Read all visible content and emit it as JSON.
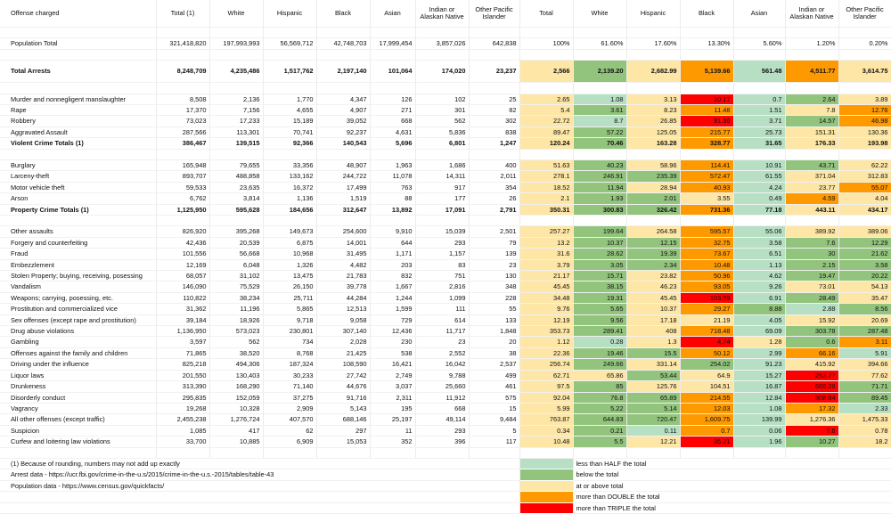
{
  "headers": [
    "Offense charged",
    "Total (1)",
    "White",
    "Hispanic",
    "Black",
    "Asian",
    "Indian or Alaskan Native",
    "Other Pacific Islander",
    "Total",
    "White",
    "Hispanic",
    "Black",
    "Asian",
    "Indian or Alaskan Native",
    "Other Pacific Islander"
  ],
  "population": {
    "label": "Population Total",
    "counts": [
      "321,418,820",
      "197,993,993",
      "56,569,712",
      "42,748,703",
      "17,999,454",
      "3,857,026",
      "642,838"
    ],
    "pct": [
      "100%",
      "61.60%",
      "17.60%",
      "13.30%",
      "5.60%",
      "1.20%",
      "0.20%"
    ]
  },
  "total_arrests": {
    "label": "Total Arrests",
    "counts": [
      "8,248,709",
      "4,235,486",
      "1,517,762",
      "2,197,140",
      "101,064",
      "174,020",
      "23,237"
    ],
    "rates": [
      "2,566",
      "2,139.20",
      "2,682.99",
      "5,139.66",
      "561.48",
      "4,511.77",
      "3,614.75"
    ],
    "colors": [
      "",
      "v",
      "y",
      "o",
      "g",
      "o",
      "y"
    ]
  },
  "groups": [
    {
      "rows": [
        {
          "label": "Murder and nonnegligent manslaughter",
          "counts": [
            "8,508",
            "2,136",
            "1,770",
            "4,347",
            "126",
            "102",
            "25"
          ],
          "rates": [
            "2.65",
            "1.08",
            "3.13",
            "10.17",
            "0.7",
            "2.64",
            "3.89"
          ],
          "colors": [
            "y",
            "g",
            "y",
            "r",
            "g",
            "v",
            "y"
          ]
        },
        {
          "label": "Rape",
          "counts": [
            "17,370",
            "7,156",
            "4,655",
            "4,907",
            "271",
            "301",
            "82"
          ],
          "rates": [
            "5.4",
            "3.61",
            "8.23",
            "11.48",
            "1.51",
            "7.8",
            "12.76"
          ],
          "colors": [
            "y",
            "v",
            "y",
            "o",
            "g",
            "y",
            "o"
          ]
        },
        {
          "label": "Robbery",
          "counts": [
            "73,023",
            "17,233",
            "15,189",
            "39,052",
            "668",
            "562",
            "302"
          ],
          "rates": [
            "22.72",
            "8.7",
            "26.85",
            "91.36",
            "3.71",
            "14.57",
            "46.98"
          ],
          "colors": [
            "y",
            "g",
            "y",
            "r",
            "g",
            "v",
            "o"
          ]
        },
        {
          "label": "Aggravated Assault",
          "counts": [
            "287,566",
            "113,301",
            "70,741",
            "92,237",
            "4,631",
            "5,836",
            "838"
          ],
          "rates": [
            "89.47",
            "57.22",
            "125.05",
            "215.77",
            "25.73",
            "151.31",
            "130.36"
          ],
          "colors": [
            "y",
            "v",
            "y",
            "o",
            "g",
            "y",
            "y"
          ]
        },
        {
          "label": "Violent Crime Totals (1)",
          "bold": true,
          "counts": [
            "386,467",
            "139,515",
            "92,366",
            "140,543",
            "5,696",
            "6,801",
            "1,247"
          ],
          "rates": [
            "120.24",
            "70.46",
            "163.28",
            "328.77",
            "31.65",
            "176.33",
            "193.98"
          ],
          "colors": [
            "y",
            "v",
            "y",
            "o",
            "g",
            "y",
            "y"
          ]
        }
      ]
    },
    {
      "rows": [
        {
          "label": "Burglary",
          "counts": [
            "165,948",
            "79,655",
            "33,356",
            "48,907",
            "1,963",
            "1,686",
            "400"
          ],
          "rates": [
            "51.63",
            "40.23",
            "58.96",
            "114.41",
            "10.91",
            "43.71",
            "62.22"
          ],
          "colors": [
            "y",
            "v",
            "y",
            "o",
            "g",
            "v",
            "y"
          ]
        },
        {
          "label": "Larceny-theft",
          "counts": [
            "893,707",
            "488,858",
            "133,162",
            "244,722",
            "11,078",
            "14,311",
            "2,011"
          ],
          "rates": [
            "278.1",
            "246.91",
            "235.39",
            "572.47",
            "61.55",
            "371.04",
            "312.83"
          ],
          "colors": [
            "y",
            "v",
            "v",
            "o",
            "g",
            "y",
            "y"
          ]
        },
        {
          "label": "Motor vehicle theft",
          "counts": [
            "59,533",
            "23,635",
            "16,372",
            "17,499",
            "763",
            "917",
            "354"
          ],
          "rates": [
            "18.52",
            "11.94",
            "28.94",
            "40.93",
            "4.24",
            "23.77",
            "55.07"
          ],
          "colors": [
            "y",
            "v",
            "y",
            "o",
            "g",
            "y",
            "o"
          ]
        },
        {
          "label": "Arson",
          "counts": [
            "6,762",
            "3,814",
            "1,136",
            "1,519",
            "88",
            "177",
            "26"
          ],
          "rates": [
            "2.1",
            "1.93",
            "2.01",
            "3.55",
            "0.49",
            "4.59",
            "4.04"
          ],
          "colors": [
            "y",
            "v",
            "v",
            "y",
            "g",
            "o",
            "y"
          ]
        },
        {
          "label": "Property Crime Totals (1)",
          "bold": true,
          "counts": [
            "1,125,950",
            "595,628",
            "184,656",
            "312,647",
            "13,892",
            "17,091",
            "2,791"
          ],
          "rates": [
            "350.31",
            "300.83",
            "326.42",
            "731.36",
            "77.18",
            "443.11",
            "434.17"
          ],
          "colors": [
            "y",
            "v",
            "v",
            "o",
            "g",
            "y",
            "y"
          ]
        }
      ]
    },
    {
      "rows": [
        {
          "label": "Other assaults",
          "counts": [
            "826,920",
            "395,268",
            "149,673",
            "254,600",
            "9,910",
            "15,039",
            "2,501"
          ],
          "rates": [
            "257.27",
            "199.64",
            "264.58",
            "595.57",
            "55.06",
            "389.92",
            "389.06"
          ],
          "colors": [
            "y",
            "v",
            "y",
            "o",
            "g",
            "y",
            "y"
          ]
        },
        {
          "label": "Forgery and counterfeiting",
          "counts": [
            "42,436",
            "20,539",
            "6,875",
            "14,001",
            "644",
            "293",
            "79"
          ],
          "rates": [
            "13.2",
            "10.37",
            "12.15",
            "32.75",
            "3.58",
            "7.6",
            "12.29"
          ],
          "colors": [
            "y",
            "v",
            "v",
            "o",
            "g",
            "v",
            "v"
          ]
        },
        {
          "label": "Fraud",
          "counts": [
            "101,556",
            "56,668",
            "10,968",
            "31,495",
            "1,171",
            "1,157",
            "139"
          ],
          "rates": [
            "31.6",
            "28.62",
            "19.39",
            "73.67",
            "6.51",
            "30",
            "21.62"
          ],
          "colors": [
            "y",
            "v",
            "v",
            "o",
            "g",
            "v",
            "v"
          ]
        },
        {
          "label": "Embezzlement",
          "counts": [
            "12,169",
            "6,048",
            "1,326",
            "4,482",
            "203",
            "83",
            "23"
          ],
          "rates": [
            "3.79",
            "3.05",
            "2.34",
            "10.48",
            "1.13",
            "2.15",
            "3.58"
          ],
          "colors": [
            "y",
            "v",
            "v",
            "o",
            "g",
            "v",
            "v"
          ]
        },
        {
          "label": "Stolen Property; buying, receiving, posessing",
          "counts": [
            "68,057",
            "31,102",
            "13,475",
            "21,783",
            "832",
            "751",
            "130"
          ],
          "rates": [
            "21.17",
            "15.71",
            "23.82",
            "50.96",
            "4.62",
            "19.47",
            "20.22"
          ],
          "colors": [
            "y",
            "v",
            "y",
            "o",
            "g",
            "v",
            "v"
          ]
        },
        {
          "label": "Vandalism",
          "counts": [
            "146,090",
            "75,529",
            "26,150",
            "39,778",
            "1,667",
            "2,816",
            "348"
          ],
          "rates": [
            "45.45",
            "38.15",
            "46.23",
            "93.05",
            "9.26",
            "73.01",
            "54.13"
          ],
          "colors": [
            "y",
            "v",
            "y",
            "o",
            "g",
            "y",
            "y"
          ]
        },
        {
          "label": "Weapons; carrying, posessing, etc.",
          "counts": [
            "110,822",
            "38,234",
            "25,711",
            "44,284",
            "1,244",
            "1,099",
            "228"
          ],
          "rates": [
            "34.48",
            "19.31",
            "45.45",
            "103.59",
            "6.91",
            "28.49",
            "35.47"
          ],
          "colors": [
            "y",
            "v",
            "y",
            "r",
            "g",
            "v",
            "y"
          ]
        },
        {
          "label": "Prostitution and commercialized vice",
          "counts": [
            "31,362",
            "11,196",
            "5,865",
            "12,513",
            "1,599",
            "111",
            "55"
          ],
          "rates": [
            "9.76",
            "5.65",
            "10.37",
            "29.27",
            "8.88",
            "2.88",
            "8.56"
          ],
          "colors": [
            "y",
            "v",
            "y",
            "o",
            "v",
            "g",
            "v"
          ]
        },
        {
          "label": "Sex offenses (except rape and prostitution)",
          "counts": [
            "39,184",
            "18,926",
            "9,718",
            "9,058",
            "729",
            "614",
            "133"
          ],
          "rates": [
            "12.19",
            "9.56",
            "17.18",
            "21.19",
            "4.05",
            "15.92",
            "20.69"
          ],
          "colors": [
            "y",
            "v",
            "y",
            "y",
            "g",
            "y",
            "y"
          ]
        },
        {
          "label": "Drug abuse violations",
          "counts": [
            "1,136,950",
            "573,023",
            "230,801",
            "307,140",
            "12,436",
            "11,717",
            "1,848"
          ],
          "rates": [
            "353.73",
            "289.41",
            "408",
            "718.48",
            "69.09",
            "303.78",
            "287.48"
          ],
          "colors": [
            "y",
            "v",
            "y",
            "o",
            "g",
            "v",
            "v"
          ]
        },
        {
          "label": "Gambling",
          "counts": [
            "3,597",
            "562",
            "734",
            "2,028",
            "230",
            "23",
            "20"
          ],
          "rates": [
            "1.12",
            "0.28",
            "1.3",
            "4.74",
            "1.28",
            "0.6",
            "3.11"
          ],
          "colors": [
            "y",
            "g",
            "y",
            "r",
            "y",
            "v",
            "o"
          ]
        },
        {
          "label": "Offenses against the family and children",
          "counts": [
            "71,865",
            "38,520",
            "8,768",
            "21,425",
            "538",
            "2,552",
            "38"
          ],
          "rates": [
            "22.36",
            "19.46",
            "15.5",
            "50.12",
            "2.99",
            "66.16",
            "5.91"
          ],
          "colors": [
            "y",
            "v",
            "v",
            "o",
            "g",
            "o",
            "g"
          ]
        },
        {
          "label": "Driving under the influence",
          "counts": [
            "825,218",
            "494,306",
            "187,324",
            "108,590",
            "16,421",
            "16,042",
            "2,537"
          ],
          "rates": [
            "256.74",
            "249.66",
            "331.14",
            "254.02",
            "91.23",
            "415.92",
            "394.66"
          ],
          "colors": [
            "y",
            "v",
            "y",
            "v",
            "g",
            "y",
            "y"
          ]
        },
        {
          "label": "Liquor laws",
          "counts": [
            "201,550",
            "130,403",
            "30,233",
            "27,742",
            "2,749",
            "9,788",
            "499"
          ],
          "rates": [
            "62.71",
            "65.86",
            "53.44",
            "64.9",
            "15.27",
            "253.77",
            "77.62"
          ],
          "colors": [
            "y",
            "y",
            "v",
            "y",
            "g",
            "r",
            "y"
          ]
        },
        {
          "label": "Drunkeness",
          "counts": [
            "313,390",
            "168,290",
            "71,140",
            "44,676",
            "3,037",
            "25,660",
            "461"
          ],
          "rates": [
            "97.5",
            "85",
            "125.76",
            "104.51",
            "16.87",
            "665.28",
            "71.71"
          ],
          "colors": [
            "y",
            "v",
            "y",
            "y",
            "g",
            "r",
            "v"
          ]
        },
        {
          "label": "Disorderly conduct",
          "counts": [
            "295,835",
            "152,059",
            "37,275",
            "91,716",
            "2,311",
            "11,912",
            "575"
          ],
          "rates": [
            "92.04",
            "76.8",
            "65.89",
            "214.55",
            "12.84",
            "308.84",
            "89.45"
          ],
          "colors": [
            "y",
            "v",
            "v",
            "o",
            "g",
            "r",
            "v"
          ]
        },
        {
          "label": "Vagrancy",
          "counts": [
            "19,268",
            "10,328",
            "2,909",
            "5,143",
            "195",
            "668",
            "15"
          ],
          "rates": [
            "5.99",
            "5.22",
            "5.14",
            "12.03",
            "1.08",
            "17.32",
            "2.33"
          ],
          "colors": [
            "y",
            "v",
            "v",
            "o",
            "g",
            "o",
            "g"
          ]
        },
        {
          "label": "All other offenses (except traffic)",
          "counts": [
            "2,455,238",
            "1,276,724",
            "407,570",
            "688,146",
            "25,197",
            "49,114",
            "9,484"
          ],
          "rates": [
            "763.87",
            "644.83",
            "720.47",
            "1,609.75",
            "139.99",
            "1,276.36",
            "1,475.33"
          ],
          "colors": [
            "y",
            "v",
            "v",
            "o",
            "g",
            "y",
            "y"
          ]
        },
        {
          "label": "Suspicion",
          "counts": [
            "1,085",
            "417",
            "62",
            "297",
            "11",
            "293",
            "5"
          ],
          "rates": [
            "0.34",
            "0.21",
            "0.11",
            "0.7",
            "0.06",
            "7.6",
            "0.78"
          ],
          "colors": [
            "y",
            "v",
            "g",
            "o",
            "g",
            "r",
            "y"
          ]
        },
        {
          "label": "Curfew and loitering law violations",
          "counts": [
            "33,700",
            "10,885",
            "6,909",
            "15,053",
            "352",
            "396",
            "117"
          ],
          "rates": [
            "10.48",
            "5.5",
            "12.21",
            "35.21",
            "1.96",
            "10.27",
            "18.2"
          ],
          "colors": [
            "y",
            "v",
            "y",
            "r",
            "g",
            "v",
            "y"
          ]
        }
      ]
    }
  ],
  "notes": [
    "(1) Because of rounding, numbers may not add up exactly",
    "Arrest data - https://ucr.fbi.gov/crime-in-the-u.s/2015/crime-in-the-u.s.-2015/tables/table-43",
    "Population data - https://www.census.gov/quickfacts/"
  ],
  "legend": [
    {
      "color": "g",
      "label": "less than HALF the total"
    },
    {
      "color": "v",
      "label": "below the total"
    },
    {
      "color": "y",
      "label": "at or above total"
    },
    {
      "color": "o",
      "label": "more than DOUBLE the total"
    },
    {
      "color": "r",
      "label": "more than TRIPLE the total"
    }
  ],
  "palette": {
    "g": "#b7dfc4",
    "v": "#93c47d",
    "y": "#fde6a6",
    "o": "#ff9900",
    "r": "#ff0000"
  }
}
